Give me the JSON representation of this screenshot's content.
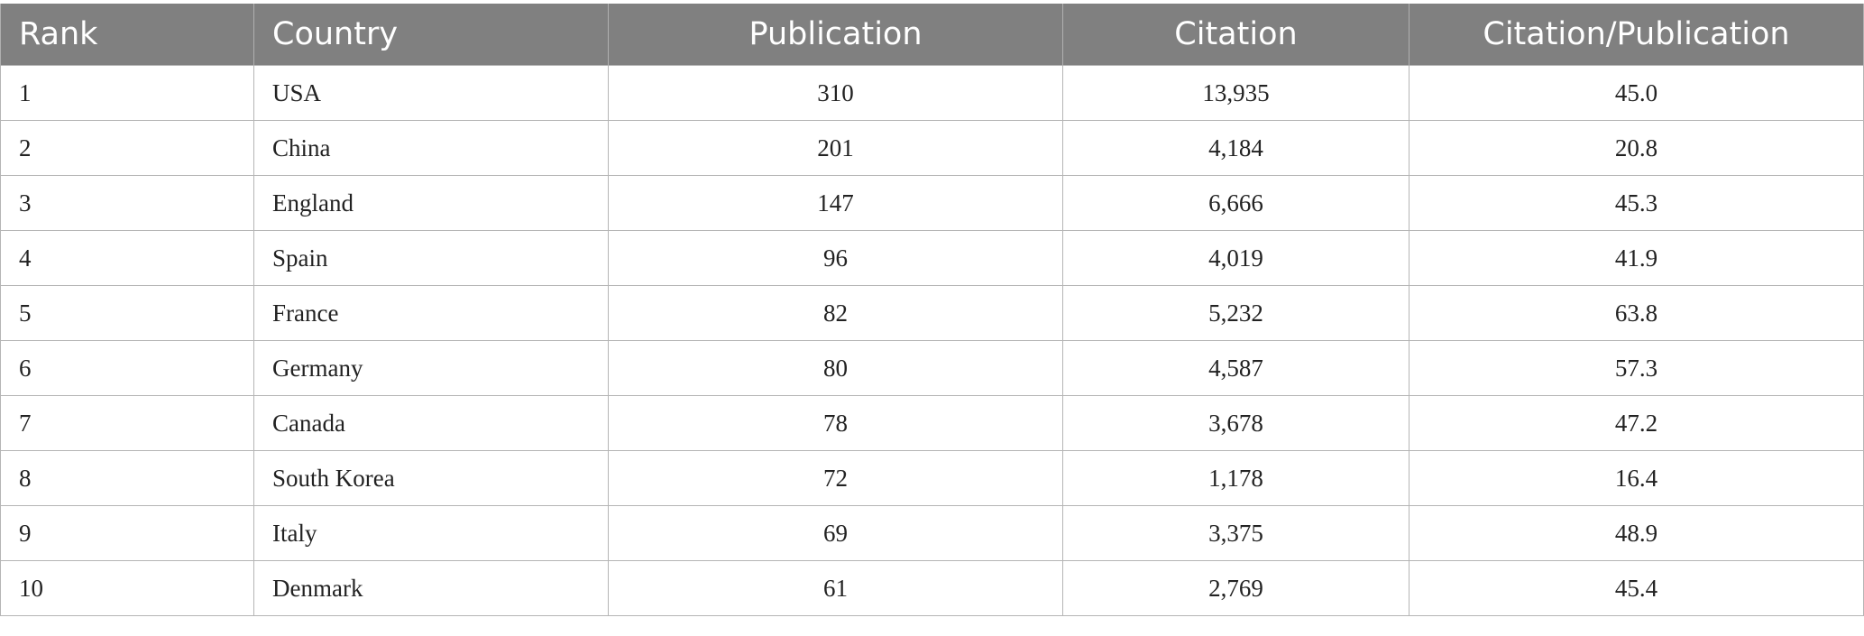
{
  "table": {
    "headers": {
      "rank": "Rank",
      "country": "Country",
      "publication": "Publication",
      "citation": "Citation",
      "citation_per_publication": "Citation/Publication"
    },
    "rows": [
      {
        "rank": "1",
        "country": "USA",
        "publication": "310",
        "citation": "13,935",
        "cpp": "45.0"
      },
      {
        "rank": "2",
        "country": "China",
        "publication": "201",
        "citation": "4,184",
        "cpp": "20.8"
      },
      {
        "rank": "3",
        "country": "England",
        "publication": "147",
        "citation": "6,666",
        "cpp": "45.3"
      },
      {
        "rank": "4",
        "country": "Spain",
        "publication": "96",
        "citation": "4,019",
        "cpp": "41.9"
      },
      {
        "rank": "5",
        "country": "France",
        "publication": "82",
        "citation": "5,232",
        "cpp": "63.8"
      },
      {
        "rank": "6",
        "country": "Germany",
        "publication": "80",
        "citation": "4,587",
        "cpp": "57.3"
      },
      {
        "rank": "7",
        "country": "Canada",
        "publication": "78",
        "citation": "3,678",
        "cpp": "47.2"
      },
      {
        "rank": "8",
        "country": "South Korea",
        "publication": "72",
        "citation": "1,178",
        "cpp": "16.4"
      },
      {
        "rank": "9",
        "country": "Italy",
        "publication": "69",
        "citation": "3,375",
        "cpp": "48.9"
      },
      {
        "rank": "10",
        "country": "Denmark",
        "publication": "61",
        "citation": "2,769",
        "cpp": "45.4"
      }
    ]
  },
  "colors": {
    "header_background": "#808080",
    "header_text": "#ffffff",
    "grid_line": "#b5b5b5"
  }
}
